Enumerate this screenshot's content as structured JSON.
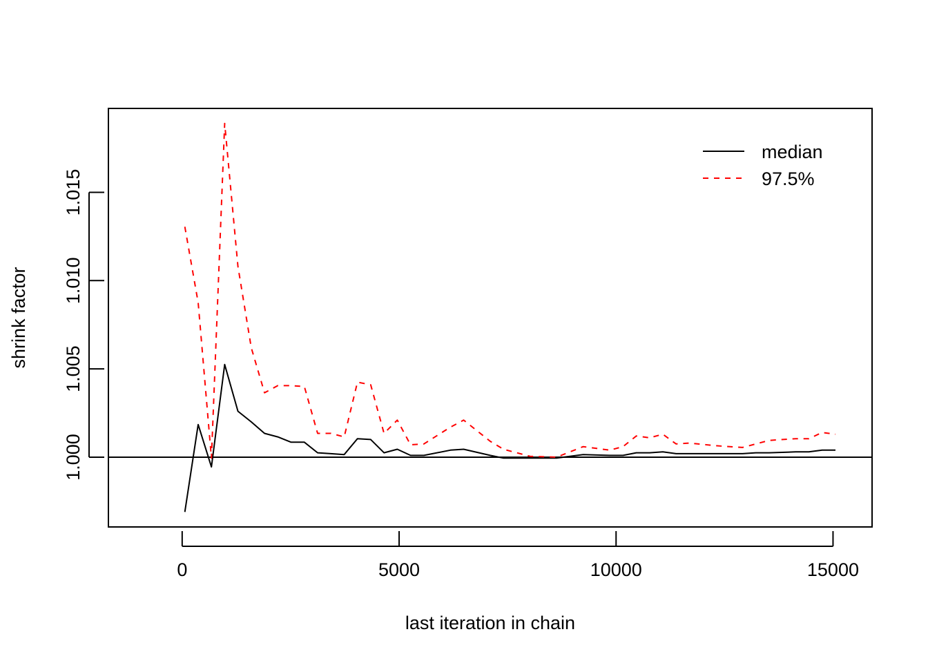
{
  "chart_data": {
    "type": "line",
    "title": "",
    "xlabel": "last iteration in chain",
    "ylabel": "shrink factor",
    "xlim": [
      -1700,
      15900
    ],
    "ylim": [
      0.99605,
      1.01975
    ],
    "x_ticks": [
      0,
      5000,
      10000,
      15000
    ],
    "x_tick_labels": [
      "0",
      "5000",
      "10000",
      "15000"
    ],
    "y_ticks": [
      1.0,
      1.005,
      1.01,
      1.015
    ],
    "y_tick_labels": [
      "1.000",
      "1.005",
      "1.010",
      "1.015"
    ],
    "reference_line": 1.0,
    "grid": false,
    "legend_position": "top-right",
    "series": [
      {
        "name": "median",
        "color": "#000000",
        "dash": "solid",
        "points": [
          [
            62,
            0.9969
          ],
          [
            368,
            1.00185
          ],
          [
            674,
            0.99945
          ],
          [
            980,
            1.00525
          ],
          [
            1286,
            1.0026
          ],
          [
            1592,
            1.002
          ],
          [
            1898,
            1.00135
          ],
          [
            2204,
            1.00115
          ],
          [
            2510,
            1.00085
          ],
          [
            2816,
            1.00085
          ],
          [
            3122,
            1.00025
          ],
          [
            3428,
            1.0002
          ],
          [
            3734,
            1.00015
          ],
          [
            4040,
            1.00105
          ],
          [
            4346,
            1.001
          ],
          [
            4652,
            1.00025
          ],
          [
            4958,
            1.00045
          ],
          [
            5264,
            1.0001
          ],
          [
            5570,
            1.0001
          ],
          [
            6182,
            1.0004
          ],
          [
            6488,
            1.00045
          ],
          [
            7100,
            1.0001
          ],
          [
            7406,
            0.99995
          ],
          [
            8018,
            0.99995
          ],
          [
            8630,
            0.99995
          ],
          [
            9242,
            1.00015
          ],
          [
            9854,
            1.0001
          ],
          [
            10160,
            1.0001
          ],
          [
            10466,
            1.00025
          ],
          [
            10772,
            1.00025
          ],
          [
            11078,
            1.0003
          ],
          [
            11384,
            1.0002
          ],
          [
            11690,
            1.0002
          ],
          [
            12302,
            1.0002
          ],
          [
            12914,
            1.0002
          ],
          [
            13220,
            1.00025
          ],
          [
            13526,
            1.00025
          ],
          [
            14138,
            1.0003
          ],
          [
            14444,
            1.0003
          ],
          [
            14750,
            1.0004
          ],
          [
            15056,
            1.0004
          ]
        ]
      },
      {
        "name": "97.5%",
        "color": "#ff0000",
        "dash": "dashed",
        "points": [
          [
            62,
            1.01305
          ],
          [
            368,
            1.00875
          ],
          [
            674,
            0.99995
          ],
          [
            980,
            1.0189
          ],
          [
            1286,
            1.0108
          ],
          [
            1592,
            1.0062
          ],
          [
            1898,
            1.00365
          ],
          [
            2204,
            1.00405
          ],
          [
            2510,
            1.00405
          ],
          [
            2816,
            1.004
          ],
          [
            3122,
            1.00135
          ],
          [
            3428,
            1.00135
          ],
          [
            3734,
            1.00115
          ],
          [
            4040,
            1.00425
          ],
          [
            4346,
            1.0041
          ],
          [
            4652,
            1.00135
          ],
          [
            4958,
            1.0021
          ],
          [
            5264,
            1.0007
          ],
          [
            5570,
            1.00075
          ],
          [
            6182,
            1.0017
          ],
          [
            6488,
            1.0021
          ],
          [
            7100,
            1.0009
          ],
          [
            7406,
            1.00045
          ],
          [
            8018,
            1.00005
          ],
          [
            8630,
            1.0
          ],
          [
            9242,
            1.0006
          ],
          [
            9854,
            1.0004
          ],
          [
            10160,
            1.0006
          ],
          [
            10466,
            1.0012
          ],
          [
            10772,
            1.0011
          ],
          [
            11078,
            1.0013
          ],
          [
            11384,
            1.00075
          ],
          [
            11690,
            1.0008
          ],
          [
            12302,
            1.00065
          ],
          [
            12914,
            1.00055
          ],
          [
            13220,
            1.00075
          ],
          [
            13526,
            1.00095
          ],
          [
            14138,
            1.00105
          ],
          [
            14444,
            1.00105
          ],
          [
            14750,
            1.0014
          ],
          [
            15056,
            1.0013
          ]
        ]
      }
    ]
  }
}
